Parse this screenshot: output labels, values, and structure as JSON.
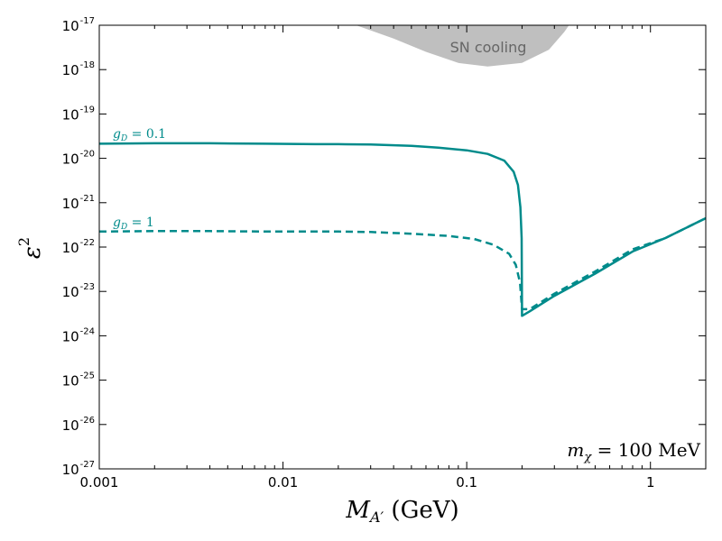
{
  "chart_data": {
    "type": "line",
    "xscale": "log",
    "yscale": "log",
    "xlim": [
      0.001,
      2.0
    ],
    "ylim_exponents": [
      -27,
      -17
    ],
    "xlabel": "M",
    "xlabel_sub": "A′",
    "xlabel_unit": "(GeV)",
    "ylabel": "ε",
    "ylabel_sup": "2",
    "x_ticks": [
      {
        "value": 0.001,
        "label": "0.001"
      },
      {
        "value": 0.01,
        "label": "0.01"
      },
      {
        "value": 0.1,
        "label": "0.1"
      },
      {
        "value": 1,
        "label": "1"
      }
    ],
    "y_ticks": [
      {
        "exp": -17,
        "base": "10",
        "sup": "-17"
      },
      {
        "exp": -18,
        "base": "10",
        "sup": "-18"
      },
      {
        "exp": -19,
        "base": "10",
        "sup": "-19"
      },
      {
        "exp": -20,
        "base": "10",
        "sup": "-20"
      },
      {
        "exp": -21,
        "base": "10",
        "sup": "-21"
      },
      {
        "exp": -22,
        "base": "10",
        "sup": "-22"
      },
      {
        "exp": -23,
        "base": "10",
        "sup": "-23"
      },
      {
        "exp": -24,
        "base": "10",
        "sup": "-24"
      },
      {
        "exp": -25,
        "base": "10",
        "sup": "-25"
      },
      {
        "exp": -26,
        "base": "10",
        "sup": "-26"
      },
      {
        "exp": -27,
        "base": "10",
        "sup": "-27"
      }
    ],
    "series": [
      {
        "name": "g_D = 0.1",
        "label_main": "g",
        "label_sub": "D",
        "label_rest": " = 0.1",
        "style": "solid",
        "color": "#008b8b",
        "points": [
          [
            0.001,
            -19.67
          ],
          [
            0.002,
            -19.66
          ],
          [
            0.004,
            -19.66
          ],
          [
            0.008,
            -19.67
          ],
          [
            0.015,
            -19.68
          ],
          [
            0.02,
            -19.68
          ],
          [
            0.03,
            -19.69
          ],
          [
            0.05,
            -19.72
          ],
          [
            0.07,
            -19.76
          ],
          [
            0.1,
            -19.82
          ],
          [
            0.13,
            -19.9
          ],
          [
            0.16,
            -20.05
          ],
          [
            0.18,
            -20.3
          ],
          [
            0.19,
            -20.6
          ],
          [
            0.196,
            -21.1
          ],
          [
            0.199,
            -21.8
          ],
          [
            0.2,
            -23.4
          ],
          [
            0.2,
            -23.55
          ],
          [
            0.22,
            -23.45
          ],
          [
            0.3,
            -23.1
          ],
          [
            0.5,
            -22.6
          ],
          [
            0.8,
            -22.1
          ],
          [
            1.2,
            -21.8
          ],
          [
            2.0,
            -21.35
          ]
        ]
      },
      {
        "name": "g_D = 1",
        "label_main": "g",
        "label_sub": "D",
        "label_rest": " = 1",
        "style": "dashed",
        "color": "#008b8b",
        "points": [
          [
            0.001,
            -21.65
          ],
          [
            0.002,
            -21.64
          ],
          [
            0.004,
            -21.64
          ],
          [
            0.008,
            -21.65
          ],
          [
            0.015,
            -21.65
          ],
          [
            0.02,
            -21.65
          ],
          [
            0.03,
            -21.66
          ],
          [
            0.05,
            -21.7
          ],
          [
            0.08,
            -21.75
          ],
          [
            0.11,
            -21.82
          ],
          [
            0.14,
            -21.95
          ],
          [
            0.17,
            -22.15
          ],
          [
            0.185,
            -22.4
          ],
          [
            0.195,
            -22.8
          ],
          [
            0.2,
            -23.4
          ],
          [
            0.22,
            -23.4
          ],
          [
            0.3,
            -23.05
          ],
          [
            0.5,
            -22.55
          ],
          [
            0.8,
            -22.05
          ],
          [
            1.2,
            -21.8
          ],
          [
            2.0,
            -21.35
          ]
        ]
      }
    ],
    "shaded_regions": [
      {
        "name": "SN cooling",
        "label": "SN cooling",
        "color": "#bfbfbf",
        "boundary": [
          [
            0.025,
            -17.0
          ],
          [
            0.04,
            -17.3
          ],
          [
            0.06,
            -17.6
          ],
          [
            0.09,
            -17.85
          ],
          [
            0.13,
            -17.93
          ],
          [
            0.2,
            -17.85
          ],
          [
            0.28,
            -17.55
          ],
          [
            0.34,
            -17.15
          ],
          [
            0.36,
            -17.0
          ]
        ]
      }
    ],
    "annotations": [
      {
        "main": "m",
        "sub": "χ",
        "rest": " = 100 ",
        "unit": "MeV",
        "position": "bottom-right"
      }
    ]
  }
}
